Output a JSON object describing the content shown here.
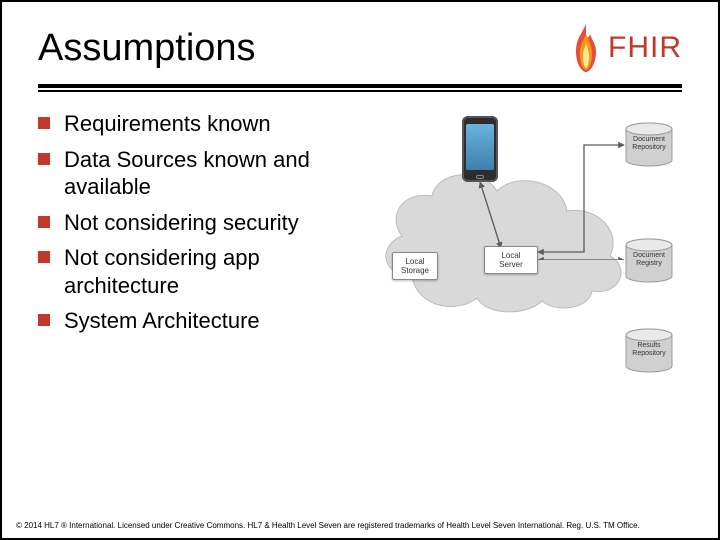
{
  "title": "Assumptions",
  "logo_text": "FHIR",
  "bullets": [
    "Requirements known",
    "Data Sources known and available",
    "Not considering security",
    "Not considering app architecture",
    "System Architecture"
  ],
  "diagram": {
    "type": "network",
    "cloud_bg": "#d7d7d7",
    "box_labels": {
      "local_storage": "Local\nStorage",
      "local_server": "Local\nServer",
      "doc_repo": "Document\nRepository",
      "doc_registry": "Document\nRegistry",
      "results_repo": "Results\nRepository"
    },
    "colors": {
      "accent": "#c0392b",
      "cylinder_top": "#e9e9e9",
      "cylinder_side": "#d0d0d0",
      "phone_body": "#2d2d2d",
      "phone_screen_top": "#6bb3e0",
      "phone_screen_bot": "#3f7fa8",
      "arrow": "#5a5a5a",
      "box_border": "#888888",
      "background": "#ffffff"
    }
  },
  "footer": "© 2014 HL7 ® International. Licensed under Creative Commons. HL7 & Health Level Seven are registered trademarks of Health Level Seven International. Reg. U.S. TM Office."
}
